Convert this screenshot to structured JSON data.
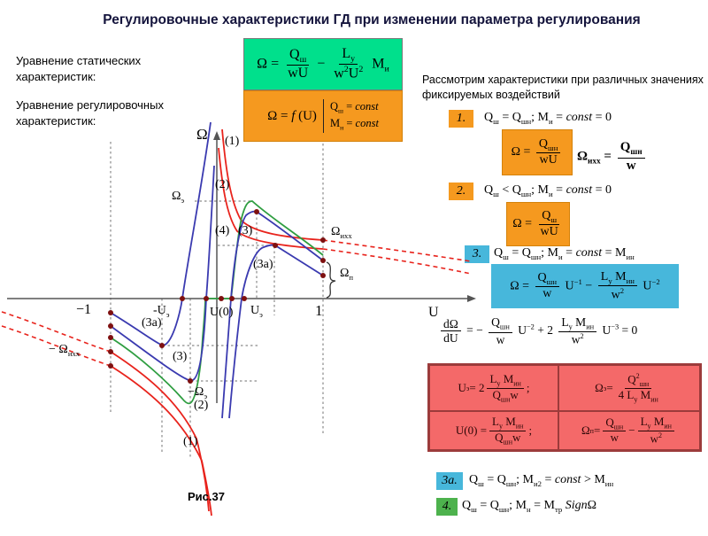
{
  "title": "Регулировочные характеристики ГД при изменении параметра регулирования",
  "left_labels": {
    "static": "Уравнение статических характеристик:",
    "regulation": "Уравнение регулировочных характеристик:"
  },
  "eq_static": "Ω = {Q_ш_}/{wU} − {L_у_}/{w^2^U^2^} M_и_",
  "eq_reg_main": "Ω = *f* (U)",
  "eq_reg_cond1": "Q_ш_ = *const*",
  "eq_reg_cond2": "M_н_ = *const*",
  "right_intro": "Рассмотрим характеристики при различных значениях фиксируемых воздействий",
  "items": {
    "i1": {
      "num": "1.",
      "cond": "Q_ш_ = Q_шн_;   M_и_ = *const* = 0",
      "box": "Ω = {Q_шн_}/{wU}",
      "side": "Ω_ихх_ = {Q_шн_}/{w}"
    },
    "i2": {
      "num": "2.",
      "cond": "Q_ш_ < Q_шн_;   M_и_ = *const* = 0",
      "box": "Ω = {Q_ш_}/{wU}"
    },
    "i3": {
      "num": "3.",
      "cond": "Q_ш_ = Q_шн_;   M_и_ = *const* = M_ин_",
      "box": "Ω = {Q_шн_}/{w} U^−1^ − {L_у_ M_ин_}/{w^2^} U^−2^",
      "deriv": "{dΩ}/{dU} = − {Q_шн_}/{w} U^−2^ + 2 {L_у_ M_ин_}/{w^2^} U^−3^ = 0"
    },
    "i3a": {
      "num": "3а.",
      "cond": "Q_ш_ = Q_шн_; M_и2_ = *const* > M_ин_"
    },
    "i4": {
      "num": "4.",
      "cond": "Q_ш_ = Q_шн_;   M_н_ = M_тр_ *Sign*Ω"
    }
  },
  "results": {
    "ue": "U_э_ = 2 {L_у_ M_ин_}/{Q_шн_w};",
    "omega_e": "Ω_э_ = {Q^2^_шн_}/{4 L_у_ M_ин_}",
    "u0": "U(0) = {L_у_ M_ин_}/{Q_шн_w};",
    "omega_p": "Ω_п_ = {Q_шн_}/{w} − {L_у_ M_ин_}/{w^2^}"
  },
  "graph": {
    "y_label": "Ω",
    "x_label": "U",
    "caption": "Рис.37",
    "labels": {
      "c1_top": "(1)",
      "c2_top": "(2)",
      "c4_top": "(4)",
      "c3_top": "(3)",
      "c3a_top": "(3а)",
      "omega_e": "Ω_э_",
      "omega_ihh": "Ω_ихх_",
      "omega_p": "Ω_п_",
      "neg_omega_ihh": "− Ω_ихх_",
      "neg_omega_e": "−Ω_э_",
      "c3a_bot": "(3а)",
      "c3_bot": "(3)",
      "c2_bot": "(2)",
      "c1_bot": "(1)"
    },
    "ticks": {
      "m1": "−1",
      "mue": "-U_э_",
      "u0": "U(0)",
      "ue": "U_э_",
      "p1": "1"
    }
  },
  "colors": {
    "green_box": "#00e08c",
    "orange_box": "#f5991f",
    "blue_box": "#47b7db",
    "pink_box": "#f46969",
    "pink_border": "#9c3b3b",
    "red_curve": "#e8231c",
    "green_curve": "#2f9e41",
    "blue_curve": "#3a3ab0",
    "dot": "#7e1010",
    "title_text": "#14143c"
  }
}
